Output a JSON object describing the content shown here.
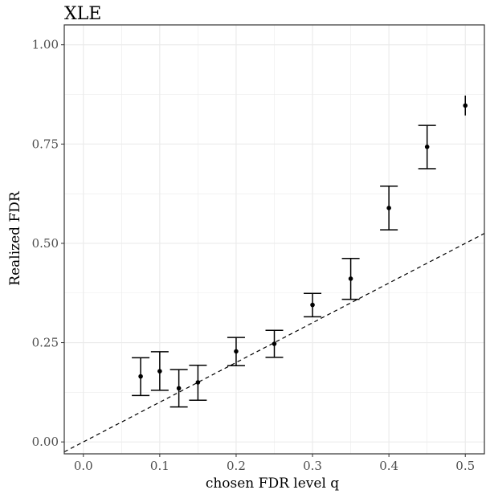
{
  "chart_data": {
    "type": "scatter",
    "title": "XLE",
    "xlabel": "chosen FDR level q",
    "ylabel": "Realized FDR",
    "xlim": [
      -0.025,
      0.525
    ],
    "ylim": [
      -0.03,
      1.05
    ],
    "x_ticks": [
      0.0,
      0.1,
      0.2,
      0.3,
      0.4,
      0.5
    ],
    "x_tick_labels": [
      "0.0",
      "0.1",
      "0.2",
      "0.3",
      "0.4",
      "0.5"
    ],
    "y_ticks": [
      0.0,
      0.25,
      0.5,
      0.75,
      1.0
    ],
    "y_tick_labels": [
      "0.00",
      "0.25",
      "0.50",
      "0.75",
      "1.00"
    ],
    "grid": true,
    "reference_line": {
      "slope": 1,
      "intercept": 0,
      "style": "dashed"
    },
    "colors": {
      "points": "#000000",
      "grid": "#ebebeb",
      "axis_text": "#4d4d4d"
    },
    "points": [
      {
        "x": 0.075,
        "y": 0.165,
        "lower": 0.117,
        "upper": 0.212
      },
      {
        "x": 0.1,
        "y": 0.178,
        "lower": 0.13,
        "upper": 0.227
      },
      {
        "x": 0.125,
        "y": 0.135,
        "lower": 0.088,
        "upper": 0.182
      },
      {
        "x": 0.15,
        "y": 0.15,
        "lower": 0.105,
        "upper": 0.193
      },
      {
        "x": 0.2,
        "y": 0.228,
        "lower": 0.192,
        "upper": 0.263
      },
      {
        "x": 0.25,
        "y": 0.247,
        "lower": 0.213,
        "upper": 0.281
      },
      {
        "x": 0.3,
        "y": 0.345,
        "lower": 0.315,
        "upper": 0.374
      },
      {
        "x": 0.35,
        "y": 0.411,
        "lower": 0.359,
        "upper": 0.462
      },
      {
        "x": 0.4,
        "y": 0.589,
        "lower": 0.534,
        "upper": 0.644
      },
      {
        "x": 0.45,
        "y": 0.743,
        "lower": 0.688,
        "upper": 0.797
      },
      {
        "x": 0.5,
        "y": 0.847,
        "lower": 0.822,
        "upper": 0.872
      }
    ]
  }
}
